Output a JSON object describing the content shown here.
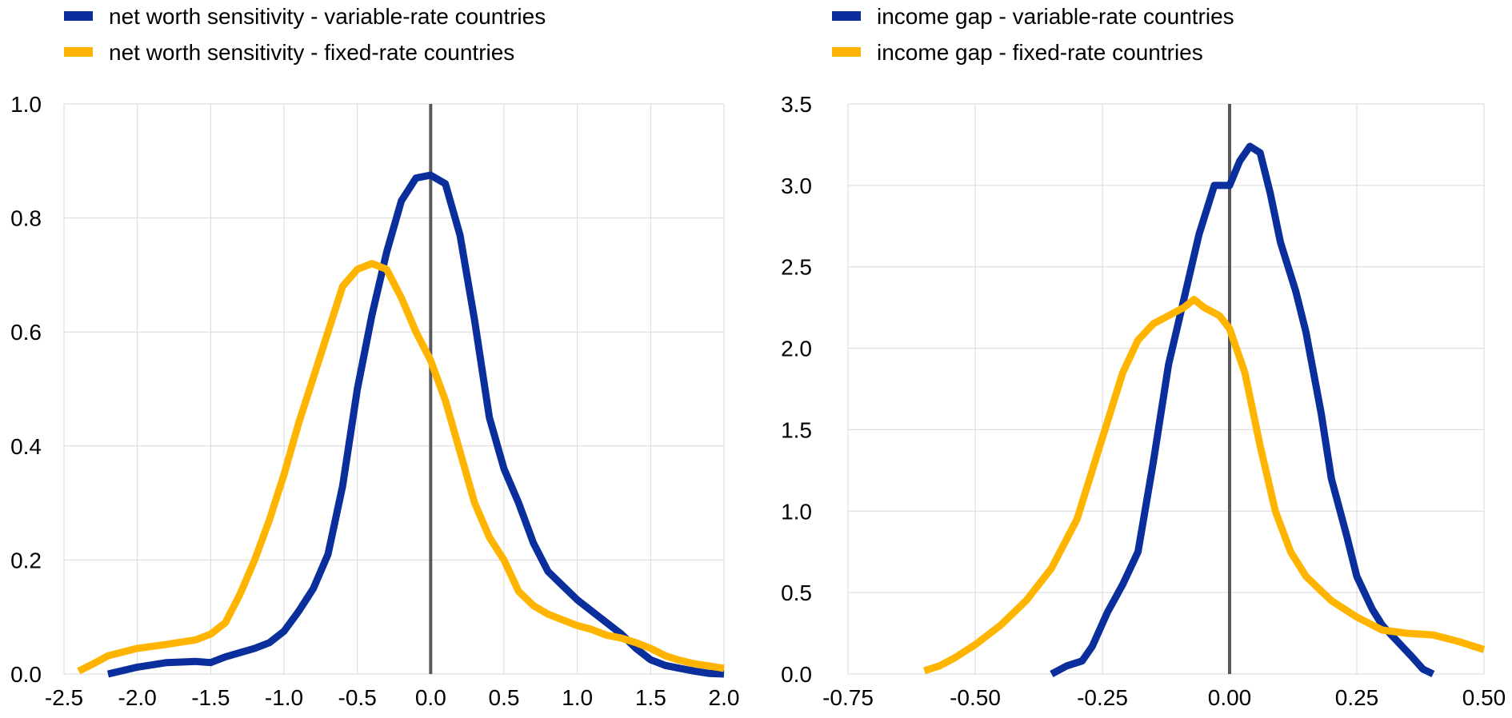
{
  "colors": {
    "variable": "#0a2e9c",
    "fixed": "#ffb400",
    "zero_line": "#595959",
    "grid": "#d9d9d9"
  },
  "chart_data": [
    {
      "type": "line",
      "xlim": [
        -2.5,
        2.0
      ],
      "ylim": [
        0.0,
        1.0
      ],
      "x_ticks": [
        "-2.5",
        "-2.0",
        "-1.5",
        "-1.0",
        "-0.5",
        "0.0",
        "0.5",
        "1.0",
        "1.5",
        "2.0"
      ],
      "y_ticks": [
        "0.0",
        "0.2",
        "0.4",
        "0.6",
        "0.8",
        "1.0"
      ],
      "grid": true,
      "vertical_reference_line_x": 0.0,
      "legend_position": "top-left",
      "series": [
        {
          "name": "net worth sensitivity - variable-rate countries",
          "color": "#0a2e9c",
          "points": [
            [
              -2.2,
              0.0
            ],
            [
              -2.0,
              0.012
            ],
            [
              -1.8,
              0.02
            ],
            [
              -1.6,
              0.022
            ],
            [
              -1.5,
              0.02
            ],
            [
              -1.4,
              0.03
            ],
            [
              -1.2,
              0.045
            ],
            [
              -1.1,
              0.055
            ],
            [
              -1.0,
              0.075
            ],
            [
              -0.9,
              0.11
            ],
            [
              -0.8,
              0.15
            ],
            [
              -0.7,
              0.21
            ],
            [
              -0.6,
              0.33
            ],
            [
              -0.5,
              0.5
            ],
            [
              -0.4,
              0.63
            ],
            [
              -0.3,
              0.74
            ],
            [
              -0.2,
              0.83
            ],
            [
              -0.1,
              0.87
            ],
            [
              0.0,
              0.875
            ],
            [
              0.1,
              0.86
            ],
            [
              0.2,
              0.77
            ],
            [
              0.3,
              0.62
            ],
            [
              0.4,
              0.45
            ],
            [
              0.5,
              0.36
            ],
            [
              0.6,
              0.3
            ],
            [
              0.7,
              0.23
            ],
            [
              0.8,
              0.18
            ],
            [
              0.9,
              0.155
            ],
            [
              1.0,
              0.13
            ],
            [
              1.1,
              0.11
            ],
            [
              1.2,
              0.09
            ],
            [
              1.3,
              0.07
            ],
            [
              1.4,
              0.045
            ],
            [
              1.5,
              0.025
            ],
            [
              1.6,
              0.015
            ],
            [
              1.7,
              0.01
            ],
            [
              1.8,
              0.005
            ],
            [
              1.9,
              0.001
            ],
            [
              2.0,
              0.0
            ]
          ]
        },
        {
          "name": "net worth sensitivity - fixed-rate countries",
          "color": "#ffb400",
          "points": [
            [
              -2.4,
              0.005
            ],
            [
              -2.3,
              0.018
            ],
            [
              -2.2,
              0.032
            ],
            [
              -2.0,
              0.045
            ],
            [
              -1.8,
              0.052
            ],
            [
              -1.6,
              0.06
            ],
            [
              -1.5,
              0.07
            ],
            [
              -1.4,
              0.09
            ],
            [
              -1.3,
              0.14
            ],
            [
              -1.2,
              0.2
            ],
            [
              -1.1,
              0.27
            ],
            [
              -1.0,
              0.35
            ],
            [
              -0.9,
              0.44
            ],
            [
              -0.8,
              0.52
            ],
            [
              -0.7,
              0.6
            ],
            [
              -0.6,
              0.68
            ],
            [
              -0.5,
              0.71
            ],
            [
              -0.4,
              0.72
            ],
            [
              -0.3,
              0.71
            ],
            [
              -0.2,
              0.66
            ],
            [
              -0.1,
              0.6
            ],
            [
              0.0,
              0.55
            ],
            [
              0.1,
              0.48
            ],
            [
              0.2,
              0.39
            ],
            [
              0.3,
              0.3
            ],
            [
              0.4,
              0.24
            ],
            [
              0.5,
              0.2
            ],
            [
              0.6,
              0.145
            ],
            [
              0.7,
              0.12
            ],
            [
              0.8,
              0.105
            ],
            [
              0.9,
              0.095
            ],
            [
              1.0,
              0.085
            ],
            [
              1.1,
              0.078
            ],
            [
              1.2,
              0.068
            ],
            [
              1.3,
              0.063
            ],
            [
              1.4,
              0.055
            ],
            [
              1.5,
              0.045
            ],
            [
              1.6,
              0.032
            ],
            [
              1.7,
              0.024
            ],
            [
              1.8,
              0.018
            ],
            [
              1.9,
              0.014
            ],
            [
              2.0,
              0.01
            ]
          ]
        }
      ]
    },
    {
      "type": "line",
      "xlim": [
        -0.75,
        0.5
      ],
      "ylim": [
        0.0,
        3.5
      ],
      "x_ticks": [
        "-0.75",
        "-0.50",
        "-0.25",
        "0.00",
        "0.25",
        "0.50"
      ],
      "y_ticks": [
        "0.0",
        "0.5",
        "1.0",
        "1.5",
        "2.0",
        "2.5",
        "3.0",
        "3.5"
      ],
      "grid": true,
      "vertical_reference_line_x": 0.0,
      "legend_position": "top-left",
      "series": [
        {
          "name": "income gap - variable-rate countries",
          "color": "#0a2e9c",
          "points": [
            [
              -0.35,
              0.0
            ],
            [
              -0.32,
              0.05
            ],
            [
              -0.29,
              0.08
            ],
            [
              -0.27,
              0.17
            ],
            [
              -0.24,
              0.38
            ],
            [
              -0.21,
              0.55
            ],
            [
              -0.18,
              0.75
            ],
            [
              -0.15,
              1.3
            ],
            [
              -0.12,
              1.9
            ],
            [
              -0.09,
              2.3
            ],
            [
              -0.06,
              2.7
            ],
            [
              -0.03,
              3.0
            ],
            [
              0.0,
              3.0
            ],
            [
              0.02,
              3.15
            ],
            [
              0.04,
              3.24
            ],
            [
              0.06,
              3.2
            ],
            [
              0.08,
              2.95
            ],
            [
              0.1,
              2.65
            ],
            [
              0.13,
              2.35
            ],
            [
              0.15,
              2.1
            ],
            [
              0.18,
              1.6
            ],
            [
              0.2,
              1.2
            ],
            [
              0.23,
              0.85
            ],
            [
              0.25,
              0.6
            ],
            [
              0.28,
              0.4
            ],
            [
              0.3,
              0.3
            ],
            [
              0.33,
              0.2
            ],
            [
              0.36,
              0.1
            ],
            [
              0.38,
              0.03
            ],
            [
              0.4,
              0.0
            ]
          ]
        },
        {
          "name": "income gap - fixed-rate countries",
          "color": "#ffb400",
          "points": [
            [
              -0.6,
              0.02
            ],
            [
              -0.57,
              0.05
            ],
            [
              -0.54,
              0.1
            ],
            [
              -0.5,
              0.18
            ],
            [
              -0.45,
              0.3
            ],
            [
              -0.4,
              0.45
            ],
            [
              -0.35,
              0.65
            ],
            [
              -0.3,
              0.95
            ],
            [
              -0.27,
              1.25
            ],
            [
              -0.24,
              1.55
            ],
            [
              -0.21,
              1.85
            ],
            [
              -0.18,
              2.05
            ],
            [
              -0.15,
              2.15
            ],
            [
              -0.12,
              2.2
            ],
            [
              -0.09,
              2.25
            ],
            [
              -0.07,
              2.3
            ],
            [
              -0.05,
              2.25
            ],
            [
              -0.02,
              2.2
            ],
            [
              0.0,
              2.12
            ],
            [
              0.03,
              1.85
            ],
            [
              0.06,
              1.4
            ],
            [
              0.09,
              1.0
            ],
            [
              0.12,
              0.75
            ],
            [
              0.15,
              0.6
            ],
            [
              0.2,
              0.45
            ],
            [
              0.25,
              0.35
            ],
            [
              0.3,
              0.27
            ],
            [
              0.35,
              0.25
            ],
            [
              0.4,
              0.24
            ],
            [
              0.45,
              0.2
            ],
            [
              0.5,
              0.15
            ]
          ]
        }
      ]
    }
  ]
}
